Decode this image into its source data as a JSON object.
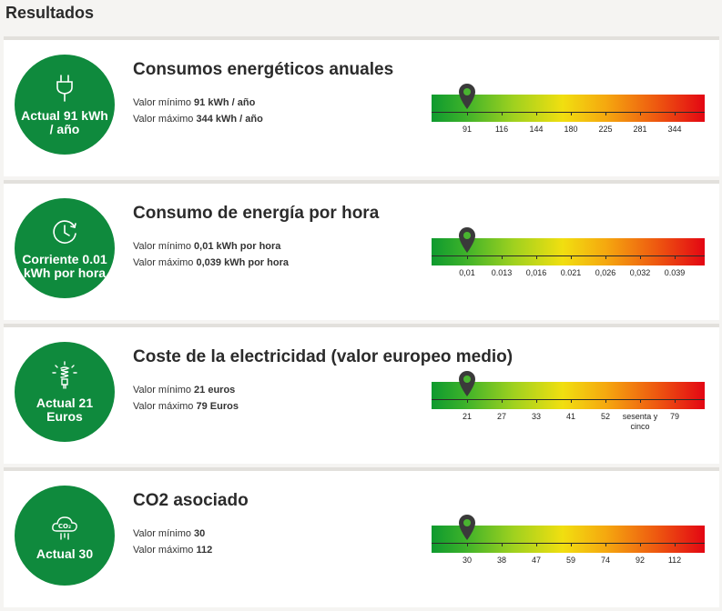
{
  "page_title": "Resultados",
  "colors": {
    "accent_green": "#0f8a3d",
    "gauge_start": "#0e9a2f",
    "gauge_end": "#e30613"
  },
  "cards": [
    {
      "icon": "plug-icon",
      "current": "Actual 91 kWh / año",
      "title": "Consumos energéticos anuales",
      "min_label": "Valor mínimo",
      "min_value": "91 kWh / año",
      "max_label": "Valor máximo",
      "max_value": "344 kWh / año",
      "ticks": [
        "91",
        "116",
        "144",
        "180",
        "225",
        "281",
        "344"
      ],
      "marker_position": 0
    },
    {
      "icon": "clock-icon",
      "current": "Corriente 0.01 kWh por hora",
      "title": "Consumo de energía por hora",
      "min_label": "Valor mínimo",
      "min_value": "0,01 kWh por hora",
      "max_label": "Valor máximo",
      "max_value": "0,039 kWh por hora",
      "ticks": [
        "0,01",
        "0.013",
        "0,016",
        "0.021",
        "0,026",
        "0,032",
        "0.039"
      ],
      "marker_position": 0
    },
    {
      "icon": "lightbulb-icon",
      "current": "Actual 21 Euros",
      "title": "Coste de la electricidad (valor europeo medio)",
      "min_label": "Valor mínimo",
      "min_value": "21 euros",
      "max_label": "Valor máximo",
      "max_value": "79 Euros",
      "ticks": [
        "21",
        "27",
        "33",
        "41",
        "52",
        "sesenta y cinco",
        "79"
      ],
      "marker_position": 0
    },
    {
      "icon": "co2-cloud-icon",
      "current": "Actual 30",
      "title": "CO2 asociado",
      "min_label": "Valor mínimo",
      "min_value": "30",
      "max_label": "Valor máximo",
      "max_value": "112",
      "ticks": [
        "30",
        "38",
        "47",
        "59",
        "74",
        "92",
        "112"
      ],
      "marker_position": 0
    }
  ]
}
